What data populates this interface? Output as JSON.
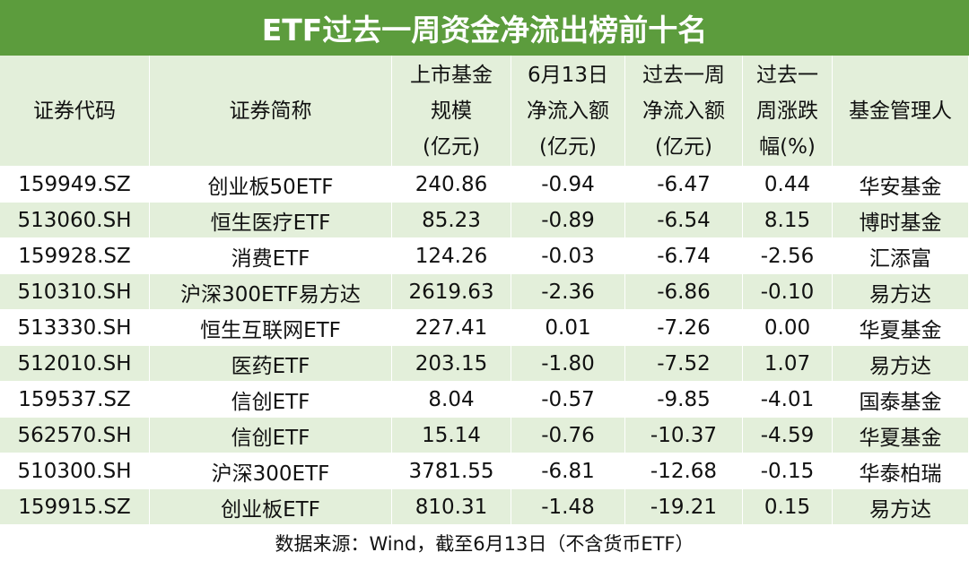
{
  "title": "ETF过去一周资金净流出榜前十名",
  "table": {
    "header": [
      [
        "证券代码"
      ],
      [
        "证券简称"
      ],
      [
        "上市基金",
        "规模",
        "(亿元)"
      ],
      [
        "6月13日",
        "净流入额",
        "(亿元)"
      ],
      [
        "过去一周",
        "净流入额",
        "(亿元)"
      ],
      [
        "过去一",
        "周涨跌",
        "幅(%)"
      ],
      [
        "基金管理人"
      ]
    ],
    "rows": [
      [
        "159949.SZ",
        "创业板50ETF",
        "240.86",
        "-0.94",
        "-6.47",
        "0.44",
        "华安基金"
      ],
      [
        "513060.SH",
        "恒生医疗ETF",
        "85.23",
        "-0.89",
        "-6.54",
        "8.15",
        "博时基金"
      ],
      [
        "159928.SZ",
        "消费ETF",
        "124.26",
        "-0.03",
        "-6.74",
        "-2.56",
        "汇添富"
      ],
      [
        "510310.SH",
        "沪深300ETF易方达",
        "2619.63",
        "-2.36",
        "-6.86",
        "-0.10",
        "易方达"
      ],
      [
        "513330.SH",
        "恒生互联网ETF",
        "227.41",
        "0.01",
        "-7.26",
        "0.00",
        "华夏基金"
      ],
      [
        "512010.SH",
        "医药ETF",
        "203.15",
        "-1.80",
        "-7.52",
        "1.07",
        "易方达"
      ],
      [
        "159537.SZ",
        "信创ETF",
        "8.04",
        "-0.57",
        "-9.85",
        "-4.01",
        "国泰基金"
      ],
      [
        "562570.SH",
        "信创ETF",
        "15.14",
        "-0.76",
        "-10.37",
        "-4.59",
        "华夏基金"
      ],
      [
        "510300.SH",
        "沪深300ETF",
        "3781.55",
        "-6.81",
        "-12.68",
        "-0.15",
        "华泰柏瑞"
      ],
      [
        "159915.SZ",
        "创业板ETF",
        "810.31",
        "-1.48",
        "-19.21",
        "0.15",
        "易方达"
      ]
    ]
  },
  "footer": "数据来源：Wind，截至6月13日（不含货币ETF）"
}
